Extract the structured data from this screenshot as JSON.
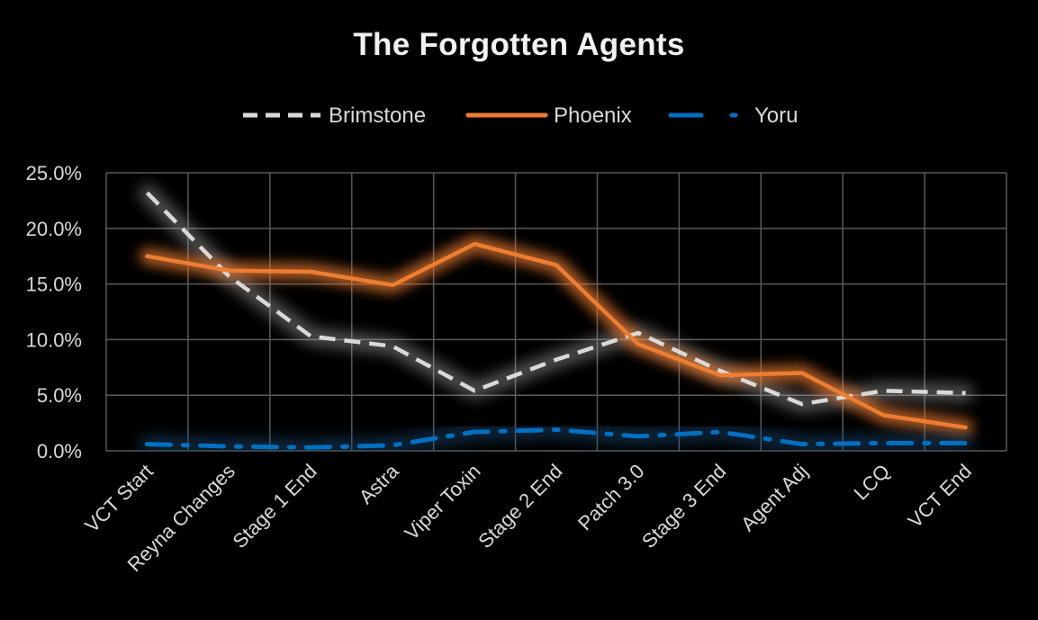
{
  "chart_data": {
    "type": "line",
    "title": "The Forgotten Agents",
    "xlabel": "",
    "ylabel": "",
    "ylim": [
      0,
      0.25
    ],
    "yticks": [
      0,
      0.05,
      0.1,
      0.15,
      0.2,
      0.25
    ],
    "ytick_labels": [
      "0.0%",
      "5.0%",
      "10.0%",
      "15.0%",
      "20.0%",
      "25.0%"
    ],
    "grid": true,
    "legend_position": "top-center",
    "categories": [
      "VCT Start",
      "Reyna Changes",
      "Stage 1 End",
      "Astra",
      "Viper Toxin",
      "Stage 2 End",
      "Patch 3.0",
      "Stage 3 End",
      "Agent Adj",
      "LCQ",
      "VCT End"
    ],
    "series": [
      {
        "name": "Brimstone",
        "color": "#d9d9d9",
        "style": "dashed",
        "values": [
          0.232,
          0.157,
          0.103,
          0.094,
          0.054,
          0.082,
          0.106,
          0.072,
          0.042,
          0.054,
          0.052
        ]
      },
      {
        "name": "Phoenix",
        "color": "#ed7d31",
        "style": "solid",
        "values": [
          0.175,
          0.162,
          0.161,
          0.149,
          0.186,
          0.167,
          0.096,
          0.068,
          0.07,
          0.032,
          0.021
        ]
      },
      {
        "name": "Yoru",
        "color": "#0070c0",
        "style": "dash-dot",
        "values": [
          0.006,
          0.004,
          0.003,
          0.005,
          0.017,
          0.019,
          0.013,
          0.017,
          0.006,
          0.007,
          0.007
        ]
      }
    ]
  }
}
